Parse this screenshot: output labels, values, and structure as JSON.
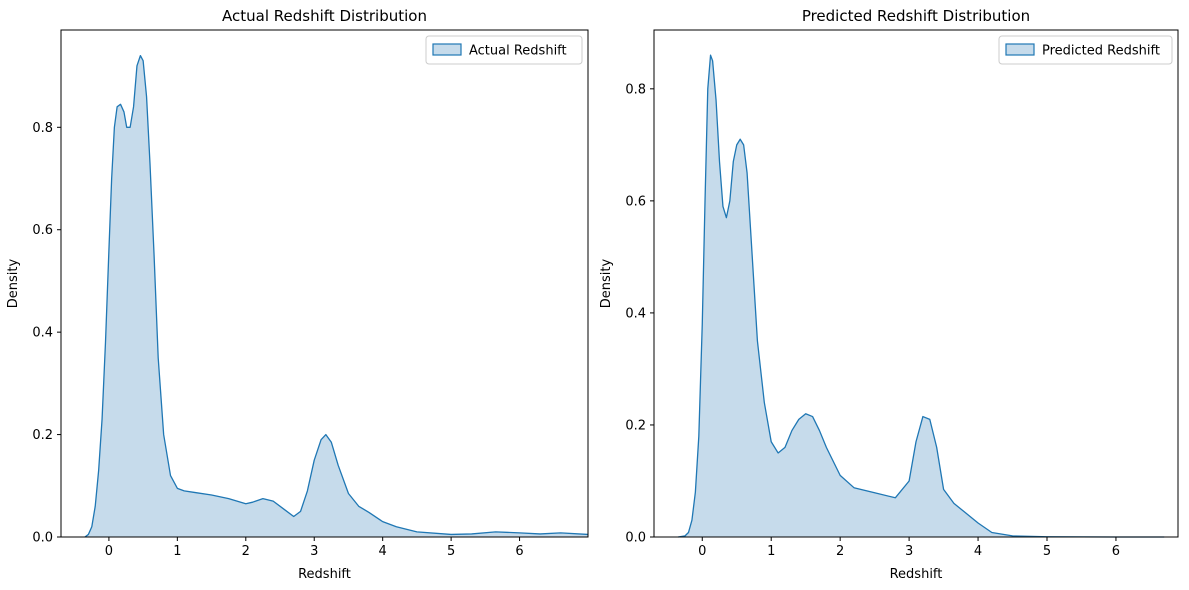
{
  "figure": {
    "accent_color": "#1f77b4",
    "fill_color": "#c6dbeb"
  },
  "chart_data": [
    {
      "type": "area",
      "title": "Actual Redshift Distribution",
      "xlabel": "Redshift",
      "ylabel": "Density",
      "xlim": [
        -0.7,
        7.0
      ],
      "ylim": [
        0,
        0.99
      ],
      "xticks": [
        0,
        1,
        2,
        3,
        4,
        5,
        6
      ],
      "yticks": [
        0.0,
        0.2,
        0.4,
        0.6,
        0.8
      ],
      "legend": {
        "placement": "top-right",
        "entries": [
          "Actual Redshift"
        ]
      },
      "series": [
        {
          "name": "Actual Redshift",
          "x": [
            -0.35,
            -0.3,
            -0.25,
            -0.2,
            -0.15,
            -0.1,
            -0.05,
            0.0,
            0.04,
            0.08,
            0.12,
            0.17,
            0.22,
            0.26,
            0.31,
            0.36,
            0.41,
            0.46,
            0.5,
            0.55,
            0.6,
            0.66,
            0.72,
            0.8,
            0.9,
            1.0,
            1.1,
            1.25,
            1.5,
            1.75,
            2.0,
            2.1,
            2.25,
            2.4,
            2.55,
            2.7,
            2.8,
            2.9,
            3.0,
            3.1,
            3.17,
            3.25,
            3.35,
            3.5,
            3.65,
            3.8,
            4.0,
            4.2,
            4.5,
            5.0,
            5.3,
            5.65,
            6.0,
            6.3,
            6.6,
            7.0
          ],
          "y": [
            0.0,
            0.005,
            0.02,
            0.06,
            0.13,
            0.23,
            0.38,
            0.56,
            0.7,
            0.8,
            0.84,
            0.845,
            0.83,
            0.8,
            0.8,
            0.84,
            0.92,
            0.94,
            0.93,
            0.86,
            0.73,
            0.55,
            0.35,
            0.2,
            0.12,
            0.095,
            0.09,
            0.087,
            0.082,
            0.075,
            0.065,
            0.068,
            0.075,
            0.07,
            0.055,
            0.04,
            0.05,
            0.09,
            0.15,
            0.19,
            0.2,
            0.185,
            0.14,
            0.085,
            0.06,
            0.048,
            0.03,
            0.02,
            0.01,
            0.005,
            0.006,
            0.01,
            0.008,
            0.006,
            0.008,
            0.005
          ]
        }
      ]
    },
    {
      "type": "area",
      "title": "Predicted Redshift Distribution",
      "xlabel": "Redshift",
      "ylabel": "Density",
      "xlim": [
        -0.7,
        6.9
      ],
      "ylim": [
        0,
        0.905
      ],
      "xticks": [
        0,
        1,
        2,
        3,
        4,
        5,
        6
      ],
      "yticks": [
        0.0,
        0.2,
        0.4,
        0.6,
        0.8
      ],
      "legend": {
        "placement": "top-right",
        "entries": [
          "Predicted Redshift"
        ]
      },
      "series": [
        {
          "name": "Predicted Redshift",
          "x": [
            -0.35,
            -0.25,
            -0.2,
            -0.15,
            -0.1,
            -0.05,
            0.0,
            0.04,
            0.08,
            0.12,
            0.15,
            0.2,
            0.25,
            0.3,
            0.35,
            0.4,
            0.45,
            0.5,
            0.55,
            0.6,
            0.65,
            0.7,
            0.75,
            0.8,
            0.9,
            1.0,
            1.1,
            1.2,
            1.3,
            1.4,
            1.5,
            1.6,
            1.7,
            1.8,
            2.0,
            2.2,
            2.5,
            2.8,
            3.0,
            3.1,
            3.2,
            3.3,
            3.4,
            3.5,
            3.65,
            3.8,
            4.0,
            4.2,
            4.5,
            5.0,
            6.0,
            6.7
          ],
          "y": [
            0.0,
            0.002,
            0.008,
            0.03,
            0.08,
            0.18,
            0.38,
            0.6,
            0.8,
            0.86,
            0.85,
            0.78,
            0.67,
            0.59,
            0.57,
            0.6,
            0.67,
            0.7,
            0.71,
            0.7,
            0.65,
            0.55,
            0.45,
            0.35,
            0.24,
            0.17,
            0.15,
            0.16,
            0.19,
            0.21,
            0.22,
            0.215,
            0.19,
            0.16,
            0.11,
            0.088,
            0.079,
            0.07,
            0.1,
            0.17,
            0.215,
            0.21,
            0.16,
            0.085,
            0.06,
            0.045,
            0.025,
            0.008,
            0.002,
            0.0005,
            0.0,
            0.0
          ]
        }
      ]
    }
  ]
}
